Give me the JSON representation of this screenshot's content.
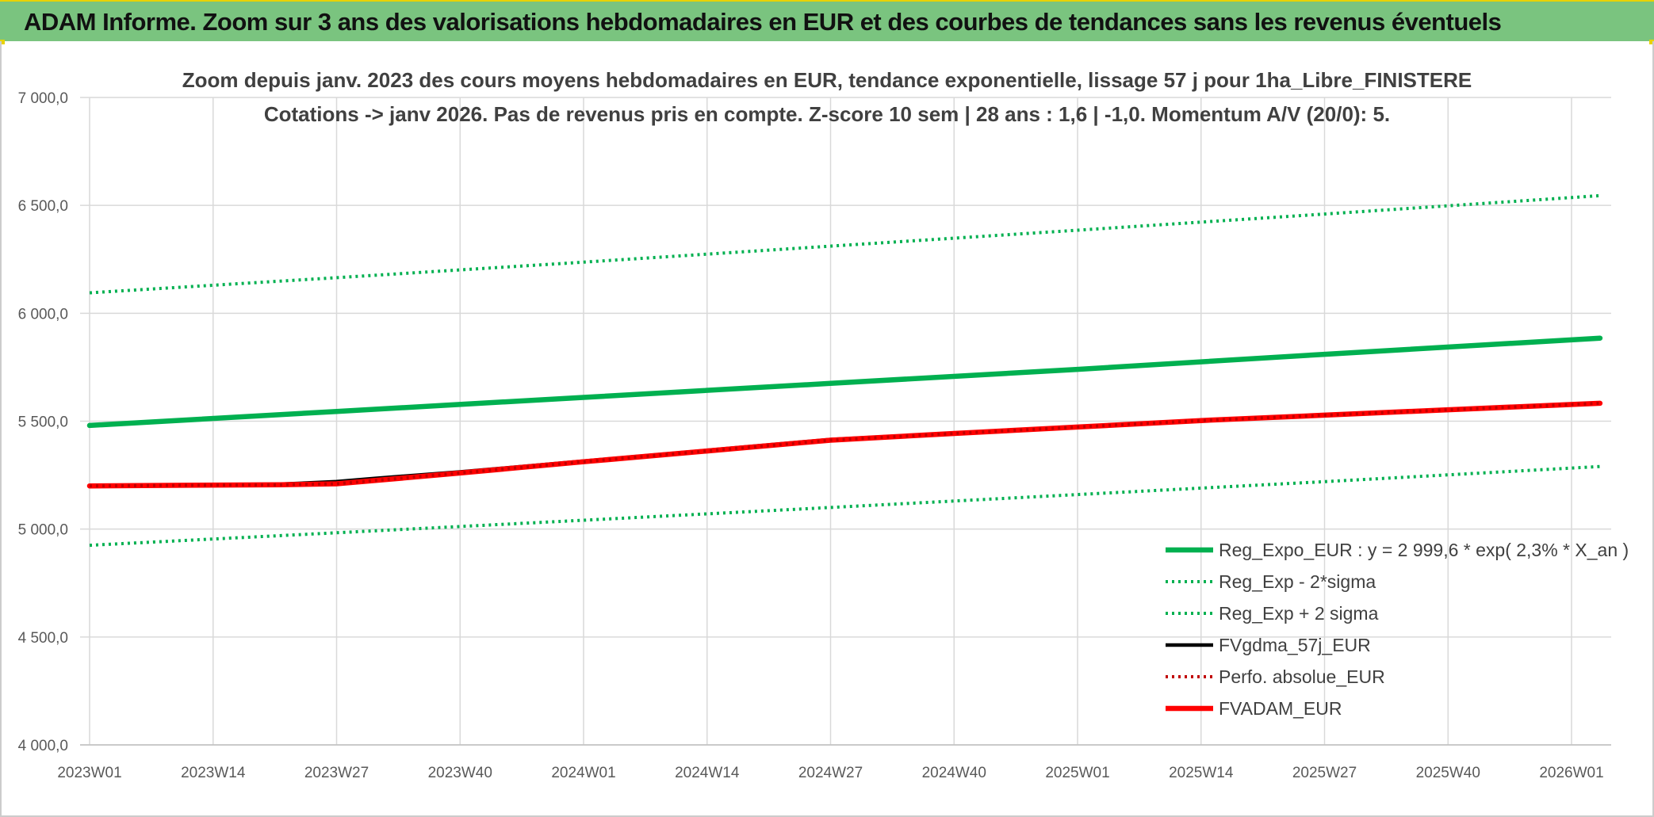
{
  "banner": {
    "title": "ADAM Informe. Zoom sur 3 ans des valorisations hebdomadaires en EUR et des courbes de tendances sans les revenus éventuels"
  },
  "colors": {
    "banner_bg": "#7ac47f",
    "green": "#00b050",
    "black": "#000000",
    "red": "#ff0000",
    "dark_red": "#c00000",
    "grid": "#d9d9d9"
  },
  "chart_data": {
    "type": "line",
    "title_line1": "Zoom depuis janv. 2023 des cours moyens hebdomadaires en EUR, tendance exponentielle, lissage 57 j pour 1ha_Libre_FINISTERE",
    "title_line2": "Cotations -> janv 2026. Pas de revenus pris en compte. Z-score 10 sem | 28 ans : 1,6 | -1,0. Momentum A/V (20/0): 5.",
    "xlabel": "",
    "ylabel": "",
    "ylim": [
      4000,
      7000
    ],
    "y_ticks": [
      "4 000,0",
      "4 500,0",
      "5 000,0",
      "5 500,0",
      "6 000,0",
      "6 500,0",
      "7 000,0"
    ],
    "y_tick_values": [
      4000,
      4500,
      5000,
      5500,
      6000,
      6500,
      7000
    ],
    "x_ticks": [
      "2023W01",
      "2023W14",
      "2023W27",
      "2023W40",
      "2024W01",
      "2024W14",
      "2024W27",
      "2024W40",
      "2025W01",
      "2025W14",
      "2025W27",
      "2025W40",
      "2026W01"
    ],
    "x_tick_weeks": [
      0,
      13,
      26,
      39,
      52,
      65,
      78,
      91,
      104,
      117,
      130,
      143,
      156
    ],
    "x_max_week": 159,
    "grid": true,
    "legend_position": "bottom-right",
    "series": [
      {
        "name": "Reg_Expo_EUR : y = 2 999,6 * exp( 2,3% *  X_an )",
        "style": "solid-thick",
        "color": "#00b050",
        "x": [
          0,
          26,
          52,
          78,
          104,
          130,
          159
        ],
        "y": [
          5480,
          5545,
          5610,
          5675,
          5740,
          5810,
          5885
        ]
      },
      {
        "name": "Reg_Exp - 2*sigma",
        "style": "dotted",
        "color": "#00b050",
        "x": [
          0,
          26,
          52,
          78,
          104,
          130,
          159
        ],
        "y": [
          4925,
          4983,
          5041,
          5100,
          5160,
          5220,
          5290
        ]
      },
      {
        "name": "Reg_Exp + 2 sigma",
        "style": "dotted",
        "color": "#00b050",
        "x": [
          0,
          26,
          52,
          78,
          104,
          130,
          159
        ],
        "y": [
          6095,
          6165,
          6237,
          6311,
          6385,
          6460,
          6545
        ]
      },
      {
        "name": "FVgdma_57j_EUR",
        "style": "solid",
        "color": "#000000",
        "x": [
          0,
          10,
          20,
          26,
          30,
          39,
          52,
          65,
          78,
          91,
          104,
          117,
          130,
          143,
          159
        ],
        "y": [
          5200,
          5205,
          5208,
          5220,
          5235,
          5265,
          5315,
          5365,
          5415,
          5445,
          5475,
          5505,
          5530,
          5555,
          5585
        ]
      },
      {
        "name": "Perfo. absolue_EUR",
        "style": "dotted",
        "color": "#c00000",
        "x": [
          0,
          10,
          20,
          26,
          30,
          39,
          52,
          65,
          78,
          91,
          104,
          117,
          130,
          143,
          159
        ],
        "y": [
          5200,
          5203,
          5205,
          5210,
          5225,
          5260,
          5312,
          5362,
          5412,
          5443,
          5473,
          5503,
          5528,
          5553,
          5583
        ]
      },
      {
        "name": "FVADAM_EUR",
        "style": "solid-thick",
        "color": "#ff0000",
        "x": [
          0,
          10,
          20,
          26,
          30,
          39,
          52,
          65,
          78,
          91,
          104,
          117,
          130,
          143,
          159
        ],
        "y": [
          5200,
          5203,
          5205,
          5210,
          5225,
          5260,
          5312,
          5362,
          5412,
          5443,
          5473,
          5503,
          5528,
          5553,
          5583
        ]
      }
    ]
  }
}
